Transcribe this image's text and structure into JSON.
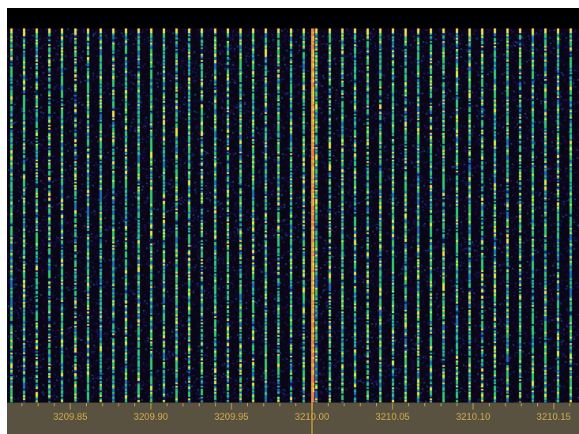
{
  "waterfall": {
    "name": "spectrum-waterfall",
    "colors": {
      "background": "#0a0618",
      "noise": "#1a0d45",
      "signal_low": "#1e6fb5",
      "signal_mid": "#2ecc71",
      "signal_high": "#f1e04a",
      "signal_peak": "#ff6a5a",
      "scale_bg": "#5a5240",
      "scale_text": "#d2b04c"
    }
  },
  "frequency_scale": {
    "labels": [
      {
        "text": "3209.85",
        "value": 3209.85
      },
      {
        "text": "3209.90",
        "value": 3209.9
      },
      {
        "text": "3209.95",
        "value": 3209.95
      },
      {
        "text": "3210.00",
        "value": 3210.0
      },
      {
        "text": "3210.05",
        "value": 3210.05
      },
      {
        "text": "3210.10",
        "value": 3210.1
      },
      {
        "text": "3210.15",
        "value": 3210.15
      }
    ],
    "tuned_frequency": 3210.0
  }
}
